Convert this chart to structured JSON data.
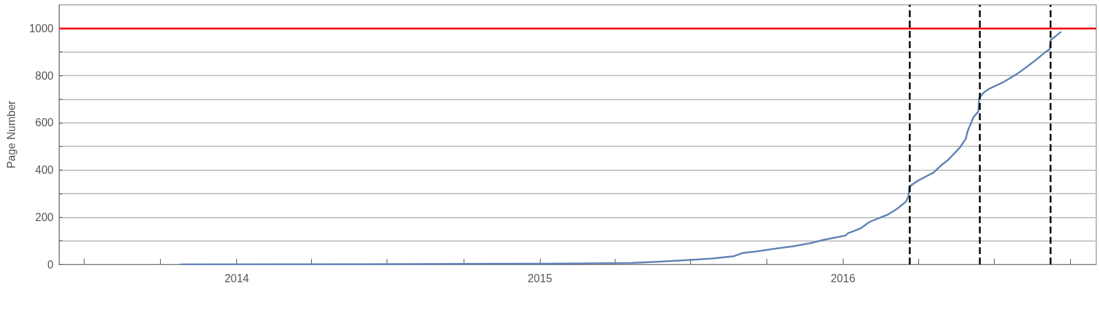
{
  "chart_data": {
    "type": "line",
    "ylabel": "Page Number",
    "x": [
      "2013-10-26",
      "2014-06-01",
      "2015-01-12",
      "2015-04-20",
      "2015-05-26",
      "2015-06-28",
      "2015-07-27",
      "2015-08-22",
      "2015-09-02",
      "2015-09-20",
      "2015-10-12",
      "2015-11-03",
      "2015-11-24",
      "2015-12-09",
      "2016-01-04",
      "2016-01-07",
      "2016-01-22",
      "2016-02-02",
      "2016-02-24",
      "2016-03-06",
      "2016-03-17",
      "2016-03-20",
      "2016-03-21",
      "2016-03-31",
      "2016-04-19",
      "2016-04-29",
      "2016-05-07",
      "2016-05-21",
      "2016-05-28",
      "2016-05-30",
      "2016-06-06",
      "2016-06-12",
      "2016-06-13",
      "2016-06-18",
      "2016-06-25",
      "2016-07-13",
      "2016-07-29",
      "2016-08-07",
      "2016-08-22",
      "2016-08-31",
      "2016-09-06",
      "2016-09-07",
      "2016-09-19"
    ],
    "series": [
      {
        "color": "#5e81b5",
        "values": [
          0,
          1,
          3,
          6,
          12,
          18,
          25,
          34,
          48,
          55,
          67,
          77,
          91,
          104,
          122,
          132,
          152,
          180,
          211,
          235,
          266,
          291,
          330,
          354,
          389,
          422,
          444,
          496,
          533,
          563,
          623,
          648,
          704,
          727,
          744,
          774,
          808,
          831,
          871,
          898,
          912,
          950,
          984
        ]
      }
    ],
    "xlim": [
      "2013-06-01",
      "2016-11-01"
    ],
    "xticks": [
      {
        "value": "2013-07-01",
        "label": null
      },
      {
        "value": "2013-10-01",
        "label": null
      },
      {
        "value": "2014-01-01",
        "label": "2014"
      },
      {
        "value": "2014-04-01",
        "label": null
      },
      {
        "value": "2014-07-01",
        "label": null
      },
      {
        "value": "2014-10-01",
        "label": null
      },
      {
        "value": "2015-01-01",
        "label": "2015"
      },
      {
        "value": "2015-04-01",
        "label": null
      },
      {
        "value": "2015-07-01",
        "label": null
      },
      {
        "value": "2015-10-01",
        "label": null
      },
      {
        "value": "2016-01-01",
        "label": "2016"
      },
      {
        "value": "2016-04-01",
        "label": null
      },
      {
        "value": "2016-07-01",
        "label": null
      },
      {
        "value": "2016-10-01",
        "label": null
      }
    ],
    "ylim": [
      0,
      1100
    ],
    "yticks": [
      0,
      {
        "value": 100,
        "label": null
      },
      200,
      {
        "value": 300,
        "label": null
      },
      400,
      {
        "value": 500,
        "label": null
      },
      600,
      {
        "value": 700,
        "label": null
      },
      800,
      {
        "value": 900,
        "label": null
      },
      1000
    ],
    "grid": "y",
    "marker": "none",
    "line_style": "solid",
    "ref_lines": [
      {
        "axis": "y",
        "value": 1000,
        "color": "#ff0000",
        "line_style": "solid"
      },
      {
        "axis": "x",
        "value": "2016-03-21",
        "color": "#000000",
        "line_style": "dashed"
      },
      {
        "axis": "x",
        "value": "2016-06-14",
        "color": "#000000",
        "line_style": "dashed"
      },
      {
        "axis": "x",
        "value": "2016-09-07",
        "color": "#000000",
        "line_style": "dashed"
      }
    ]
  }
}
